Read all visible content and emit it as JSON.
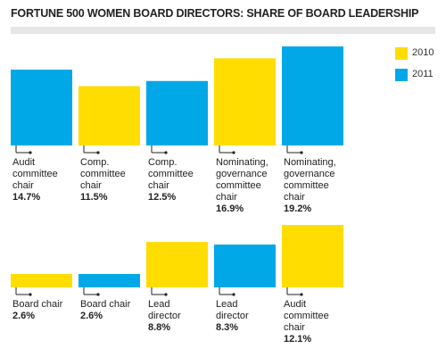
{
  "chart_data": {
    "type": "bar",
    "title": "FORTUNE 500 WOMEN BOARD DIRECTORS: SHARE OF BOARD LEADERSHIP",
    "categories": [
      "Audit committee chair",
      "Comp. committee chair",
      "Comp. committee chair",
      "Nominating, governance committee chair",
      "Nominating, governance committee chair",
      "Board chair",
      "Board chair",
      "Lead director",
      "Lead director",
      "Audit committee chair"
    ],
    "series": [
      {
        "name": "2010",
        "color": "#ffdd00",
        "values": [
          null,
          11.5,
          null,
          16.9,
          null,
          2.6,
          null,
          8.8,
          null,
          12.1
        ],
        "value_labels": [
          null,
          "11.5%",
          null,
          "16.9%",
          null,
          "2.6%",
          null,
          "8.8%",
          null,
          "12.1%"
        ]
      },
      {
        "name": "2011",
        "color": "#00a8e8",
        "values": [
          14.7,
          null,
          12.5,
          null,
          19.2,
          null,
          2.6,
          null,
          8.3,
          null
        ],
        "value_labels": [
          "14.7%",
          null,
          "12.5%",
          null,
          "19.2%",
          null,
          "2.6%",
          null,
          "8.3%",
          null
        ]
      }
    ]
  }
}
